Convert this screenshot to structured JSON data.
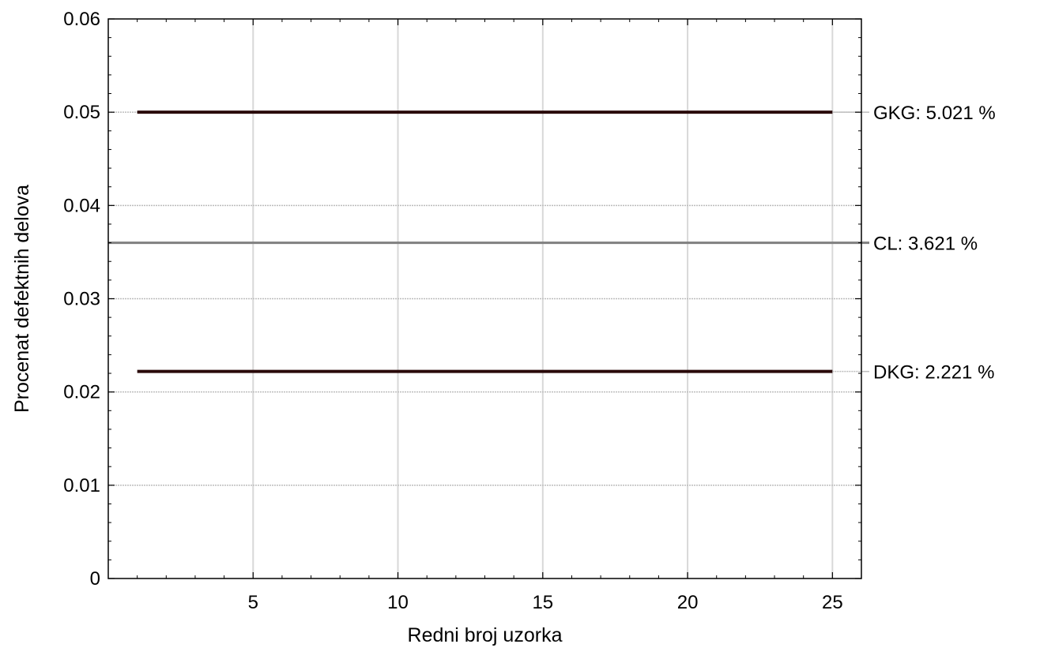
{
  "chart_data": {
    "type": "line",
    "xlabel": "Redni broj uzorka",
    "ylabel": "Procenat defektnih delova",
    "xlim": [
      0,
      26
    ],
    "ylim": [
      0,
      0.06
    ],
    "xticks": [
      5,
      10,
      15,
      20,
      25
    ],
    "yticks": [
      0,
      0.01,
      0.02,
      0.03,
      0.04,
      0.05,
      0.06
    ],
    "xtick_labels": [
      "5",
      "10",
      "15",
      "20",
      "25"
    ],
    "ytick_labels": [
      "0",
      "0.01",
      "0.02",
      "0.03",
      "0.04",
      "0.05",
      "0.06"
    ],
    "grid": true,
    "series": [
      {
        "key": "gkg",
        "x": [
          1,
          25
        ],
        "values": [
          0.05,
          0.05
        ],
        "color": "#2a0a0a"
      },
      {
        "key": "cl",
        "x": [
          0,
          26
        ],
        "values": [
          0.036,
          0.036
        ],
        "color": "#808080"
      },
      {
        "key": "dkg",
        "x": [
          1,
          25
        ],
        "values": [
          0.0222,
          0.0222
        ],
        "color": "#2a0a0a"
      }
    ],
    "limit_labels": {
      "gkg": "GKG: 5.021 %",
      "cl": "CL: 3.621 %",
      "dkg": "DKG: 2.221 %"
    }
  }
}
